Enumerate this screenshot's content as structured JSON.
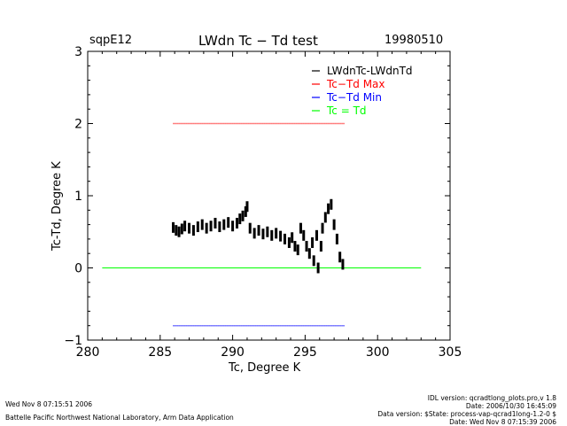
{
  "header": {
    "site": "sqpE12",
    "title": "LWdn Tc − Td test",
    "date": "19980510"
  },
  "footer": {
    "left_line1": "Wed Nov  8 07:15:51 2006",
    "left_line2": "Battelle Pacific Northwest National Laboratory, Arm Data Application",
    "right_line1": "IDL version: qcradtlong_plots.pro,v 1.8",
    "right_line2": "Date: 2006/10/30 16:45:09",
    "right_line3": "Data version: $State: process-vap-qcrad1long-1.2-0 $",
    "right_line4": "Date: Wed Nov  8 07:15:39 2006"
  },
  "chart_data": {
    "type": "scatter",
    "xlabel": "Tc, Degree K",
    "ylabel": "Tc-Td, Degree K",
    "xlim": [
      280,
      305
    ],
    "ylim": [
      -1,
      3
    ],
    "xticks": [
      "280",
      "285",
      "290",
      "295",
      "300",
      "305"
    ],
    "yticks": [
      "−1",
      "0",
      "1",
      "2",
      "3"
    ],
    "legend_position": "top-right",
    "series": [
      {
        "name": "LWdnTc-LWdnTd",
        "color": "#000000",
        "marker": "dot",
        "points": [
          [
            285.9,
            0.56
          ],
          [
            286.1,
            0.52
          ],
          [
            286.3,
            0.5
          ],
          [
            286.5,
            0.54
          ],
          [
            286.7,
            0.58
          ],
          [
            287.0,
            0.55
          ],
          [
            287.3,
            0.52
          ],
          [
            287.6,
            0.57
          ],
          [
            287.9,
            0.6
          ],
          [
            288.2,
            0.55
          ],
          [
            288.5,
            0.58
          ],
          [
            288.8,
            0.62
          ],
          [
            289.1,
            0.57
          ],
          [
            289.4,
            0.6
          ],
          [
            289.7,
            0.63
          ],
          [
            290.0,
            0.58
          ],
          [
            290.3,
            0.62
          ],
          [
            290.5,
            0.68
          ],
          [
            290.7,
            0.72
          ],
          [
            290.9,
            0.78
          ],
          [
            291.0,
            0.85
          ],
          [
            291.2,
            0.55
          ],
          [
            291.5,
            0.48
          ],
          [
            291.8,
            0.52
          ],
          [
            292.1,
            0.47
          ],
          [
            292.4,
            0.5
          ],
          [
            292.7,
            0.45
          ],
          [
            293.0,
            0.48
          ],
          [
            293.3,
            0.44
          ],
          [
            293.6,
            0.4
          ],
          [
            293.9,
            0.35
          ],
          [
            294.1,
            0.42
          ],
          [
            294.3,
            0.3
          ],
          [
            294.5,
            0.25
          ],
          [
            294.7,
            0.55
          ],
          [
            294.9,
            0.45
          ],
          [
            295.1,
            0.3
          ],
          [
            295.3,
            0.2
          ],
          [
            295.5,
            0.35
          ],
          [
            295.6,
            0.1
          ],
          [
            295.8,
            0.45
          ],
          [
            295.9,
            0.0
          ],
          [
            296.1,
            0.3
          ],
          [
            296.2,
            0.55
          ],
          [
            296.4,
            0.7
          ],
          [
            296.6,
            0.82
          ],
          [
            296.8,
            0.88
          ],
          [
            297.0,
            0.6
          ],
          [
            297.2,
            0.4
          ],
          [
            297.4,
            0.15
          ],
          [
            297.6,
            0.05
          ]
        ]
      },
      {
        "name": "Tc−Td Max",
        "color": "#ff0000",
        "marker": "dot",
        "x_range": [
          285.9,
          297.7
        ],
        "y": 2.0
      },
      {
        "name": "Tc−Td Min",
        "color": "#0000ff",
        "marker": "dot",
        "x_range": [
          285.9,
          297.7
        ],
        "y": -0.8
      },
      {
        "name": "Tc = Td",
        "color": "#00ff00",
        "marker": "line",
        "x_range": [
          281,
          303
        ],
        "y": 0
      }
    ]
  }
}
